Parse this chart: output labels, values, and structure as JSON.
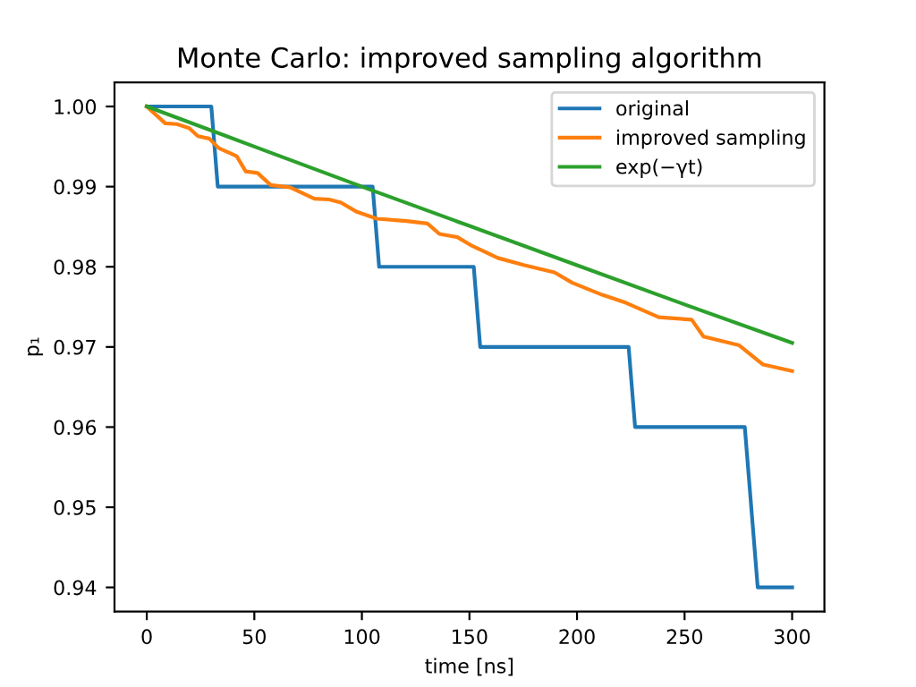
{
  "chart_data": {
    "type": "line",
    "title": "Monte Carlo: improved sampling algorithm",
    "xlabel": "time [ns]",
    "ylabel": "p₁",
    "xlim": [
      -15,
      315
    ],
    "xticks": [
      0,
      50,
      100,
      150,
      200,
      250,
      300
    ],
    "ylim": [
      0.937,
      1.003
    ],
    "yticks": [
      {
        "value": 0.94,
        "label": "0.94"
      },
      {
        "value": 0.95,
        "label": "0.95"
      },
      {
        "value": 0.96,
        "label": "0.96"
      },
      {
        "value": 0.97,
        "label": "0.97"
      },
      {
        "value": 0.98,
        "label": "0.98"
      },
      {
        "value": 0.99,
        "label": "0.99"
      },
      {
        "value": 1.0,
        "label": "1.00"
      }
    ],
    "grid": false,
    "legend": "top right",
    "series": [
      {
        "name": "original",
        "color": "#1f77b4",
        "x": [
          0,
          30,
          33,
          105,
          108,
          152,
          155,
          224,
          227,
          278,
          284,
          300
        ],
        "values": [
          1.0,
          1.0,
          0.99,
          0.99,
          0.98,
          0.98,
          0.97,
          0.97,
          0.96,
          0.96,
          0.94,
          0.94
        ]
      },
      {
        "name": "improved sampling",
        "color": "#ff7f0e",
        "x": [
          0,
          8.6,
          14,
          19.7,
          23.8,
          29,
          33.5,
          41.8,
          46,
          51.5,
          57.6,
          66.8,
          77.9,
          84.8,
          90.3,
          97.3,
          107,
          120.8,
          130.5,
          136,
          144.4,
          151.3,
          163.2,
          175.6,
          189.5,
          197.8,
          211.7,
          222.8,
          238,
          253.3,
          258.8,
          275.4,
          286.5,
          300
        ],
        "values": [
          1.0,
          0.9979,
          0.9978,
          0.9973,
          0.9963,
          0.996,
          0.9948,
          0.9938,
          0.9919,
          0.9917,
          0.9902,
          0.9899,
          0.9885,
          0.9884,
          0.988,
          0.9869,
          0.986,
          0.9857,
          0.9854,
          0.9841,
          0.9837,
          0.9826,
          0.9811,
          0.9802,
          0.9793,
          0.978,
          0.9765,
          0.9755,
          0.9737,
          0.9734,
          0.9713,
          0.9702,
          0.9678,
          0.967
        ]
      },
      {
        "name": "exp(−γt)",
        "color": "#2ca02c",
        "x": [
          0,
          50,
          100,
          150,
          200,
          250,
          300
        ],
        "values": [
          1.0,
          0.995,
          0.99,
          0.9851,
          0.9802,
          0.9753,
          0.9705
        ]
      }
    ]
  }
}
